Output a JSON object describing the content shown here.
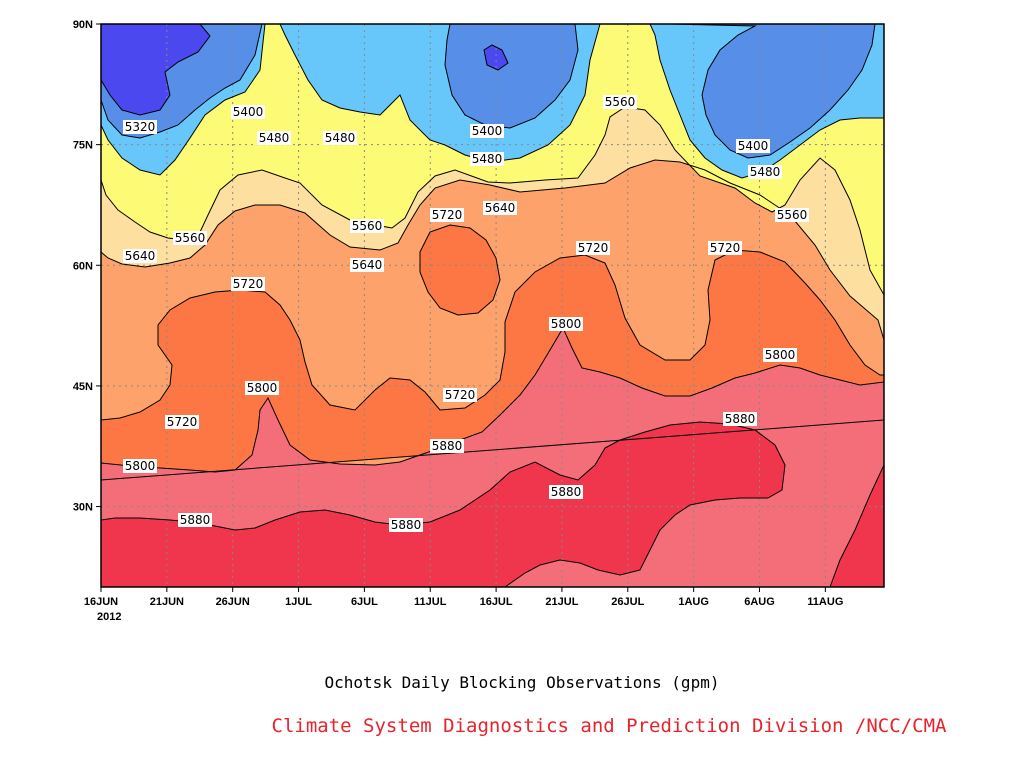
{
  "chart_data": {
    "type": "heatmap",
    "title": "Ochotsk Daily Blocking Observations (gpm)",
    "credit": "Climate System Diagnostics and Prediction Division /NCC/CMA",
    "credit_color": "#e8232b",
    "x_ticks": [
      "16JUN",
      "21JUN",
      "26JUN",
      "1JUL",
      "6JUL",
      "11JUL",
      "16JUL",
      "21JUL",
      "26JUL",
      "1AUG",
      "6AUG",
      "11AUG"
    ],
    "x_year_label": "2012",
    "y_ticks": [
      "30N",
      "45N",
      "60N",
      "75N",
      "90N"
    ],
    "y_range": [
      20,
      90
    ],
    "x_range_days": [
      0,
      59
    ],
    "contour_levels": [
      5320,
      5400,
      5480,
      5560,
      5640,
      5720,
      5800,
      5880
    ],
    "colors": {
      "below_5320": "#4b48ef",
      "5320_5400": "#578fe8",
      "5400_5480": "#67c7fb",
      "5480_5560": "#fdfb76",
      "5560_5640": "#fde09f",
      "5640_5720": "#fda26a",
      "5720_5800": "#fd7745",
      "5800_5880": "#f46e7a",
      "above_5880": "#ef364c"
    },
    "contour_labels": [
      {
        "text": "5320"
      },
      {
        "text": "5400"
      },
      {
        "text": "5480"
      },
      {
        "text": "5480"
      },
      {
        "text": "5400"
      },
      {
        "text": "5480"
      },
      {
        "text": "5560"
      },
      {
        "text": "5400"
      },
      {
        "text": "5480"
      },
      {
        "text": "5560"
      },
      {
        "text": "5560"
      },
      {
        "text": "5640"
      },
      {
        "text": "5560"
      },
      {
        "text": "5640"
      },
      {
        "text": "5720"
      },
      {
        "text": "5640"
      },
      {
        "text": "5720"
      },
      {
        "text": "5720"
      },
      {
        "text": "5720"
      },
      {
        "text": "5720"
      },
      {
        "text": "5800"
      },
      {
        "text": "5720"
      },
      {
        "text": "5800"
      },
      {
        "text": "5800"
      },
      {
        "text": "5800"
      },
      {
        "text": "5880"
      },
      {
        "text": "5880"
      },
      {
        "text": "5880"
      },
      {
        "text": "5880"
      },
      {
        "text": "5880"
      }
    ]
  }
}
